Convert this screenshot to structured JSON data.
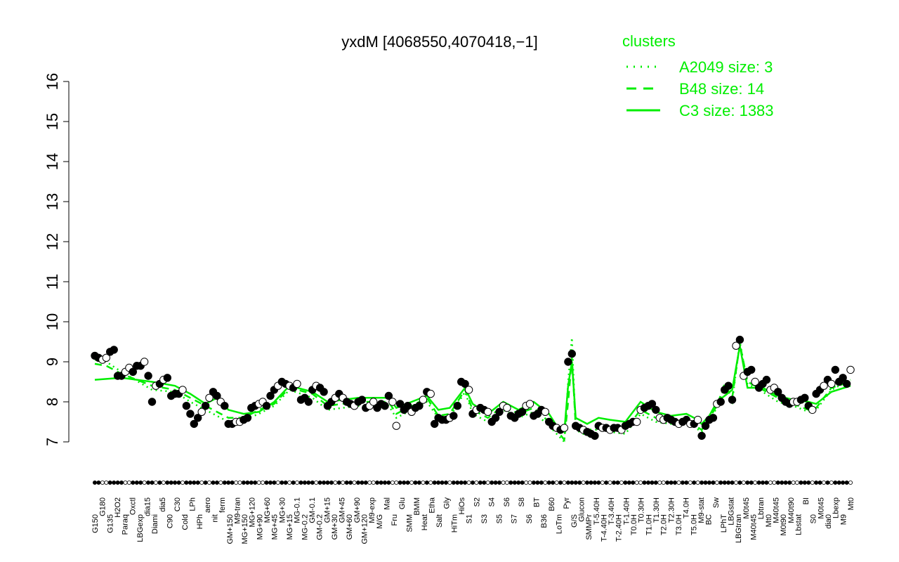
{
  "chart_data": {
    "type": "line",
    "title": "yxdM [4068550,4070418,−1]",
    "ylim": [
      7,
      16
    ],
    "yticks": [
      7,
      8,
      9,
      10,
      11,
      12,
      13,
      14,
      15,
      16
    ],
    "grid": false,
    "legend_placement": "top-right",
    "legend_title": "clusters",
    "series": [
      {
        "name": "A2049 size: 3",
        "style": "dotted",
        "color": "#00ee00"
      },
      {
        "name": "B48 size: 14",
        "style": "dashed",
        "color": "#00ee00"
      },
      {
        "name": "C3 size: 1383",
        "style": "solid",
        "color": "#00ee00"
      }
    ],
    "x_tick_labels": [
      "G150",
      "G180",
      "G135",
      "H2O2",
      "Paraq",
      "Oxctl",
      "LBGexp",
      "dia15",
      "Diami",
      "dia5",
      "C90",
      "C30",
      "Cold",
      "LPh",
      "HPh",
      "aero",
      "nit",
      "ferm",
      "GM+150",
      "M9-tran",
      "MG+150",
      "MG+120",
      "MG+90",
      "MG+60",
      "MG+45",
      "MG+30",
      "MG+15",
      "MG-0.1",
      "MG-0.2",
      "GM-0.1",
      "GM-0.2",
      "GM+15",
      "GM+30",
      "GM+45",
      "GM+60",
      "GM+90",
      "GM+120",
      "M9-exp",
      "M/G",
      "Mal",
      "Fru",
      "Glu",
      "SMM",
      "BMM",
      "Heat",
      "Etha",
      "Salt",
      "Gly",
      "HiTm",
      "HiOs",
      "S1",
      "S2",
      "S3",
      "S4",
      "S5",
      "S6",
      "S7",
      "S8",
      "S6",
      "BT",
      "B36",
      "B60",
      "LoTm",
      "Pyr",
      "G/S",
      "Glucon",
      "SMMPr",
      "T-5.40H",
      "T-4.40H",
      "T-3.40H",
      "T-2.40H",
      "T-1.40H",
      "T0.0H",
      "T0.30H",
      "T1.0H",
      "T1.30H",
      "T2.0H",
      "T2.30H",
      "T3.0H",
      "T4.0H",
      "T5.0H",
      "M9-stat",
      "BC",
      "Sw",
      "LPhT",
      "LBGstat",
      "LBGtran",
      "M0t45",
      "M40t45",
      "Lbtran",
      "Mt0",
      "M40t45",
      "M0t90",
      "M40t90",
      "Lbstat",
      "BI",
      "S0",
      "M0t45",
      "dia0",
      "Lbexp",
      "M9",
      "Mt0"
    ],
    "points": [
      [
        1,
        9.15
      ],
      [
        2,
        9.1
      ],
      [
        3,
        9.05
      ],
      [
        4,
        9.1
      ],
      [
        5,
        9.25
      ],
      [
        6,
        9.3
      ],
      [
        7,
        8.65
      ],
      [
        8,
        8.65
      ],
      [
        9,
        8.75
      ],
      [
        10,
        8.85
      ],
      [
        11,
        8.75
      ],
      [
        12,
        8.9
      ],
      [
        13,
        8.9
      ],
      [
        14,
        9.0
      ],
      [
        15,
        8.65
      ],
      [
        16,
        8.0
      ],
      [
        17,
        8.4
      ],
      [
        18,
        8.45
      ],
      [
        19,
        8.55
      ],
      [
        20,
        8.6
      ],
      [
        21,
        8.15
      ],
      [
        22,
        8.2
      ],
      [
        23,
        8.2
      ],
      [
        24,
        8.3
      ],
      [
        25,
        7.9
      ],
      [
        26,
        7.7
      ],
      [
        27,
        7.45
      ],
      [
        28,
        7.6
      ],
      [
        29,
        7.75
      ],
      [
        30,
        7.9
      ],
      [
        31,
        8.1
      ],
      [
        32,
        8.25
      ],
      [
        33,
        8.15
      ],
      [
        34,
        8.0
      ],
      [
        35,
        7.9
      ],
      [
        36,
        7.45
      ],
      [
        37,
        7.45
      ],
      [
        38,
        7.5
      ],
      [
        39,
        7.5
      ],
      [
        40,
        7.55
      ],
      [
        41,
        7.6
      ],
      [
        42,
        7.85
      ],
      [
        43,
        7.9
      ],
      [
        44,
        7.95
      ],
      [
        45,
        8.0
      ],
      [
        46,
        7.9
      ],
      [
        47,
        8.15
      ],
      [
        48,
        8.3
      ],
      [
        49,
        8.4
      ],
      [
        50,
        8.5
      ],
      [
        51,
        8.45
      ],
      [
        52,
        8.4
      ],
      [
        53,
        8.35
      ],
      [
        54,
        8.45
      ],
      [
        55,
        8.05
      ],
      [
        56,
        8.1
      ],
      [
        57,
        8.0
      ],
      [
        58,
        8.3
      ],
      [
        59,
        8.4
      ],
      [
        60,
        8.35
      ],
      [
        61,
        8.25
      ],
      [
        62,
        7.9
      ],
      [
        63,
        8.0
      ],
      [
        64,
        8.1
      ],
      [
        65,
        8.2
      ],
      [
        66,
        8.1
      ],
      [
        67,
        8.0
      ],
      [
        68,
        7.95
      ],
      [
        69,
        7.9
      ],
      [
        70,
        8.0
      ],
      [
        71,
        8.05
      ],
      [
        72,
        7.85
      ],
      [
        73,
        7.9
      ],
      [
        74,
        8.0
      ],
      [
        75,
        7.85
      ],
      [
        76,
        7.95
      ],
      [
        77,
        7.9
      ],
      [
        78,
        8.15
      ],
      [
        79,
        8.0
      ],
      [
        80,
        7.4
      ],
      [
        81,
        7.95
      ],
      [
        82,
        7.8
      ],
      [
        83,
        7.9
      ],
      [
        84,
        7.75
      ],
      [
        85,
        7.85
      ],
      [
        86,
        7.9
      ],
      [
        87,
        8.05
      ],
      [
        88,
        8.25
      ],
      [
        89,
        8.2
      ],
      [
        90,
        7.45
      ],
      [
        91,
        7.6
      ],
      [
        92,
        7.55
      ],
      [
        93,
        7.55
      ],
      [
        94,
        7.6
      ],
      [
        95,
        7.65
      ],
      [
        96,
        7.9
      ],
      [
        97,
        8.5
      ],
      [
        98,
        8.45
      ],
      [
        99,
        8.3
      ],
      [
        100,
        7.7
      ],
      [
        101,
        7.8
      ],
      [
        102,
        7.85
      ],
      [
        103,
        7.8
      ],
      [
        104,
        7.75
      ],
      [
        105,
        7.5
      ],
      [
        106,
        7.6
      ],
      [
        107,
        7.75
      ],
      [
        108,
        7.9
      ],
      [
        109,
        7.85
      ],
      [
        110,
        7.65
      ],
      [
        111,
        7.6
      ],
      [
        112,
        7.7
      ],
      [
        113,
        7.75
      ],
      [
        114,
        7.9
      ],
      [
        115,
        7.95
      ],
      [
        116,
        7.65
      ],
      [
        117,
        7.7
      ],
      [
        118,
        7.8
      ],
      [
        119,
        7.75
      ],
      [
        120,
        7.5
      ],
      [
        121,
        7.4
      ],
      [
        122,
        7.35
      ],
      [
        123,
        7.3
      ],
      [
        124,
        7.35
      ],
      [
        125,
        9.0
      ],
      [
        126,
        9.2
      ],
      [
        127,
        7.4
      ],
      [
        128,
        7.35
      ],
      [
        129,
        7.3
      ],
      [
        130,
        7.25
      ],
      [
        131,
        7.2
      ],
      [
        132,
        7.15
      ],
      [
        133,
        7.4
      ],
      [
        134,
        7.35
      ],
      [
        135,
        7.35
      ],
      [
        136,
        7.3
      ],
      [
        137,
        7.35
      ],
      [
        138,
        7.35
      ],
      [
        139,
        7.3
      ],
      [
        140,
        7.4
      ],
      [
        141,
        7.45
      ],
      [
        142,
        7.5
      ],
      [
        143,
        7.5
      ],
      [
        144,
        7.8
      ],
      [
        145,
        7.85
      ],
      [
        146,
        7.9
      ],
      [
        147,
        7.95
      ],
      [
        148,
        7.8
      ],
      [
        149,
        7.6
      ],
      [
        150,
        7.55
      ],
      [
        151,
        7.6
      ],
      [
        152,
        7.55
      ],
      [
        153,
        7.5
      ],
      [
        154,
        7.45
      ],
      [
        155,
        7.5
      ],
      [
        156,
        7.55
      ],
      [
        157,
        7.45
      ],
      [
        158,
        7.45
      ],
      [
        159,
        7.55
      ],
      [
        160,
        7.15
      ],
      [
        161,
        7.4
      ],
      [
        162,
        7.55
      ],
      [
        163,
        7.6
      ],
      [
        164,
        7.95
      ],
      [
        165,
        8.0
      ],
      [
        166,
        8.3
      ],
      [
        167,
        8.4
      ],
      [
        168,
        8.05
      ],
      [
        169,
        9.4
      ],
      [
        170,
        9.55
      ],
      [
        171,
        8.65
      ],
      [
        172,
        8.75
      ],
      [
        173,
        8.8
      ],
      [
        174,
        8.5
      ],
      [
        175,
        8.35
      ],
      [
        176,
        8.45
      ],
      [
        177,
        8.55
      ],
      [
        178,
        8.3
      ],
      [
        179,
        8.35
      ],
      [
        180,
        8.25
      ],
      [
        181,
        8.1
      ],
      [
        182,
        8.0
      ],
      [
        183,
        7.95
      ],
      [
        184,
        8.0
      ],
      [
        185,
        8.0
      ],
      [
        186,
        8.05
      ],
      [
        187,
        8.1
      ],
      [
        188,
        7.9
      ],
      [
        189,
        7.8
      ],
      [
        190,
        8.2
      ],
      [
        191,
        8.3
      ],
      [
        192,
        8.4
      ],
      [
        193,
        8.55
      ],
      [
        194,
        8.45
      ],
      [
        195,
        8.8
      ],
      [
        196,
        8.5
      ],
      [
        197,
        8.6
      ],
      [
        198,
        8.45
      ],
      [
        199,
        8.8
      ]
    ],
    "cluster_lines": {
      "C3": [
        [
          1,
          8.55
        ],
        [
          8,
          8.6
        ],
        [
          16,
          8.5
        ],
        [
          22,
          8.4
        ],
        [
          26,
          8.2
        ],
        [
          30,
          7.95
        ],
        [
          33,
          8.1
        ],
        [
          36,
          7.8
        ],
        [
          40,
          7.7
        ],
        [
          44,
          7.75
        ],
        [
          48,
          8.0
        ],
        [
          52,
          8.4
        ],
        [
          58,
          8.25
        ],
        [
          62,
          8.0
        ],
        [
          70,
          8.1
        ],
        [
          78,
          8.1
        ],
        [
          80,
          7.85
        ],
        [
          84,
          8.0
        ],
        [
          88,
          8.15
        ],
        [
          91,
          7.8
        ],
        [
          94,
          7.85
        ],
        [
          96,
          8.1
        ],
        [
          98,
          8.35
        ],
        [
          100,
          7.95
        ],
        [
          104,
          7.7
        ],
        [
          108,
          8.0
        ],
        [
          112,
          7.8
        ],
        [
          116,
          8.0
        ],
        [
          120,
          7.7
        ],
        [
          122,
          7.4
        ],
        [
          124,
          7.25
        ],
        [
          125,
          8.4
        ],
        [
          126,
          9.0
        ],
        [
          127,
          7.6
        ],
        [
          130,
          7.45
        ],
        [
          133,
          7.6
        ],
        [
          136,
          7.55
        ],
        [
          140,
          7.5
        ],
        [
          144,
          8.0
        ],
        [
          148,
          7.75
        ],
        [
          152,
          7.65
        ],
        [
          156,
          7.7
        ],
        [
          158,
          7.6
        ],
        [
          160,
          7.45
        ],
        [
          162,
          7.65
        ],
        [
          164,
          8.0
        ],
        [
          166,
          8.15
        ],
        [
          168,
          8.3
        ],
        [
          170,
          9.4
        ],
        [
          172,
          8.35
        ],
        [
          176,
          8.35
        ],
        [
          180,
          8.15
        ],
        [
          184,
          8.05
        ],
        [
          188,
          8.0
        ],
        [
          190,
          7.95
        ],
        [
          194,
          8.25
        ],
        [
          199,
          8.4
        ]
      ],
      "B48": [
        [
          1,
          8.95
        ],
        [
          4,
          8.9
        ],
        [
          8,
          8.7
        ],
        [
          16,
          8.4
        ],
        [
          22,
          8.3
        ],
        [
          26,
          8.1
        ],
        [
          30,
          7.9
        ],
        [
          36,
          7.6
        ],
        [
          40,
          7.6
        ],
        [
          44,
          7.8
        ],
        [
          48,
          7.95
        ],
        [
          52,
          8.35
        ],
        [
          58,
          8.2
        ],
        [
          62,
          7.9
        ],
        [
          70,
          8.0
        ],
        [
          78,
          8.0
        ],
        [
          80,
          7.7
        ],
        [
          84,
          7.9
        ],
        [
          88,
          8.1
        ],
        [
          91,
          7.65
        ],
        [
          94,
          7.7
        ],
        [
          96,
          8.0
        ],
        [
          98,
          8.3
        ],
        [
          100,
          7.8
        ],
        [
          104,
          7.6
        ],
        [
          108,
          7.9
        ],
        [
          112,
          7.7
        ],
        [
          116,
          7.85
        ],
        [
          120,
          7.5
        ],
        [
          122,
          7.3
        ],
        [
          124,
          7.05
        ],
        [
          125,
          8.0
        ],
        [
          126,
          9.1
        ],
        [
          127,
          7.4
        ],
        [
          130,
          7.25
        ],
        [
          133,
          7.45
        ],
        [
          136,
          7.35
        ],
        [
          140,
          7.3
        ],
        [
          144,
          7.8
        ],
        [
          148,
          7.6
        ],
        [
          152,
          7.5
        ],
        [
          156,
          7.55
        ],
        [
          160,
          7.3
        ],
        [
          164,
          7.9
        ],
        [
          166,
          8.45
        ],
        [
          168,
          8.1
        ],
        [
          170,
          9.45
        ],
        [
          172,
          8.5
        ],
        [
          176,
          8.3
        ],
        [
          180,
          8.1
        ],
        [
          184,
          7.95
        ],
        [
          188,
          7.8
        ],
        [
          190,
          7.85
        ],
        [
          194,
          8.35
        ],
        [
          199,
          8.5
        ]
      ],
      "A2049": [
        [
          1,
          9.05
        ],
        [
          4,
          9.0
        ],
        [
          8,
          8.75
        ],
        [
          16,
          8.3
        ],
        [
          22,
          8.25
        ],
        [
          26,
          8.0
        ],
        [
          30,
          7.8
        ],
        [
          36,
          7.5
        ],
        [
          40,
          7.55
        ],
        [
          44,
          7.7
        ],
        [
          48,
          7.9
        ],
        [
          52,
          8.3
        ],
        [
          58,
          8.1
        ],
        [
          62,
          7.8
        ],
        [
          70,
          7.9
        ],
        [
          78,
          7.9
        ],
        [
          80,
          7.6
        ],
        [
          84,
          7.8
        ],
        [
          88,
          8.0
        ],
        [
          91,
          7.6
        ],
        [
          94,
          7.6
        ],
        [
          96,
          7.95
        ],
        [
          98,
          8.25
        ],
        [
          100,
          7.7
        ],
        [
          104,
          7.5
        ],
        [
          108,
          7.8
        ],
        [
          112,
          7.6
        ],
        [
          116,
          7.75
        ],
        [
          120,
          7.4
        ],
        [
          122,
          7.2
        ],
        [
          124,
          7.0
        ],
        [
          125,
          8.5
        ],
        [
          126,
          9.6
        ],
        [
          127,
          7.3
        ],
        [
          130,
          7.15
        ],
        [
          133,
          7.35
        ],
        [
          136,
          7.25
        ],
        [
          140,
          7.2
        ],
        [
          144,
          7.7
        ],
        [
          148,
          7.5
        ],
        [
          152,
          7.45
        ],
        [
          156,
          7.5
        ],
        [
          160,
          7.25
        ],
        [
          164,
          7.85
        ],
        [
          166,
          8.4
        ],
        [
          168,
          8.0
        ],
        [
          170,
          9.5
        ],
        [
          172,
          8.45
        ],
        [
          176,
          8.25
        ],
        [
          180,
          8.0
        ],
        [
          184,
          7.9
        ],
        [
          188,
          7.75
        ],
        [
          190,
          7.8
        ],
        [
          194,
          8.3
        ],
        [
          199,
          8.55
        ]
      ]
    }
  }
}
